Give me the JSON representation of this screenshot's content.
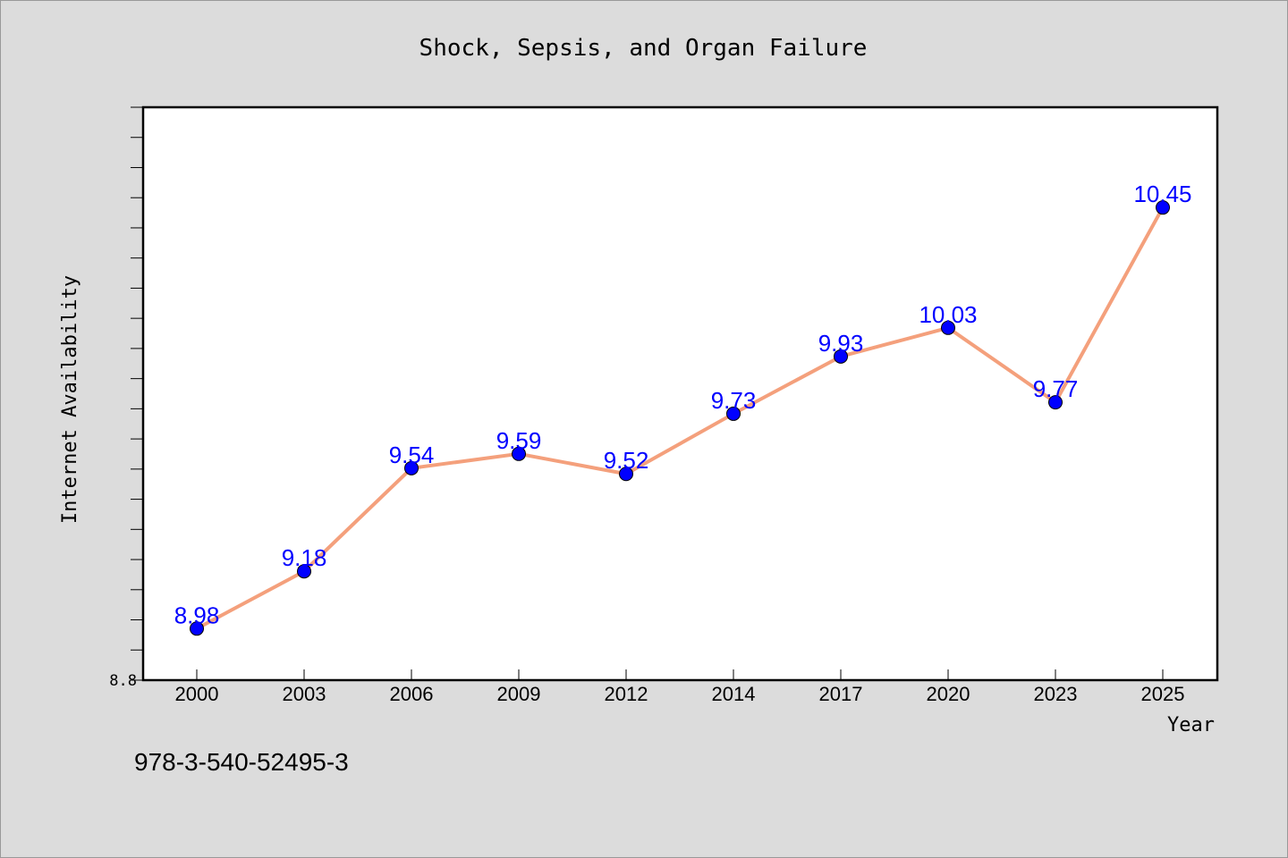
{
  "chart_data": {
    "type": "line",
    "title": "Shock, Sepsis, and Organ Failure",
    "xlabel": "Year",
    "ylabel": "Internet Availability",
    "categories": [
      "2000",
      "2003",
      "2006",
      "2009",
      "2012",
      "2014",
      "2017",
      "2020",
      "2023",
      "2025"
    ],
    "series": [
      {
        "values": [
          8.98,
          9.18,
          9.54,
          9.59,
          9.52,
          9.73,
          9.93,
          10.03,
          9.77,
          10.45
        ]
      }
    ],
    "ylim": [
      8.8,
      10.8
    ],
    "y_tick_labels": [
      "8.8"
    ],
    "y_minor_tick_count": 19,
    "data_labels": [
      "8.98",
      "9.18",
      "9.54",
      "9.59",
      "9.52",
      "9.73",
      "9.93",
      "10.03",
      "9.77",
      "10.45"
    ],
    "grid": false,
    "line_color": "#f4a07c",
    "marker_color": "#0000ff",
    "label_color": "#0000ff",
    "annotation": "978-3-540-52495-3"
  }
}
